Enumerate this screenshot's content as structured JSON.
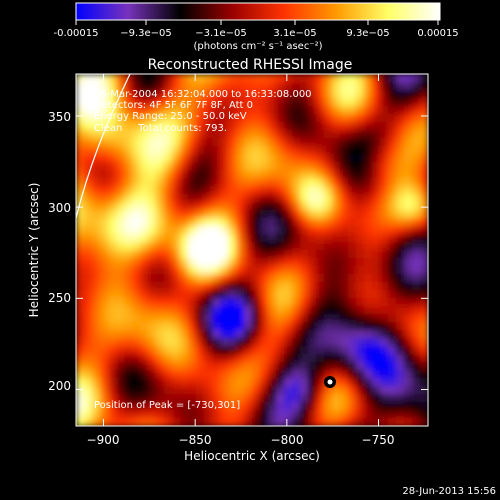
{
  "colorbar": {
    "tick_labels": [
      "-0.00015",
      "−9.3e−05",
      "−3.1e−05",
      "3.1e−05",
      "9.3e−05",
      "0.00015"
    ],
    "unit_label": "(photons cm⁻² s⁻¹ asec⁻²)"
  },
  "annotations": {
    "time_range": "26-Mar-2004 16:32:04.000 to 16:33:08.000",
    "detectors": "Detectors: 4F 5F 6F 7F 8F, Att 0",
    "energy": "Energy Range: 25.0 - 50.0 keV",
    "method": "Clean     Total counts: 793.",
    "peak": "Position of Peak = [-730,301]"
  },
  "footer_date": "28-Jun-2013 15:56",
  "chart_data": {
    "type": "heatmap",
    "title": "Reconstructed RHESSI Image",
    "xlabel": "Heliocentric X (arcsec)",
    "ylabel": "Heliocentric Y (arcsec)",
    "xlim": [
      -915,
      -723
    ],
    "ylim": [
      180,
      373
    ],
    "x_ticks": [
      -900,
      -850,
      -800,
      -750
    ],
    "y_ticks": [
      200,
      250,
      300,
      350
    ],
    "x_tick_labels": [
      "−900",
      "−850",
      "−800",
      "−750"
    ],
    "y_tick_labels": [
      "200",
      "250",
      "300",
      "350"
    ],
    "colorbar_range": [
      -0.00015,
      0.00015
    ],
    "peak_position": [
      -730,
      301
    ],
    "grid": false,
    "limb": "white curve in upper-left",
    "colors": [
      "#0000ff",
      "#7733bb",
      "#000000",
      "#990000",
      "#ff3300",
      "#ff9900",
      "#ffff66",
      "#ffffff"
    ]
  }
}
